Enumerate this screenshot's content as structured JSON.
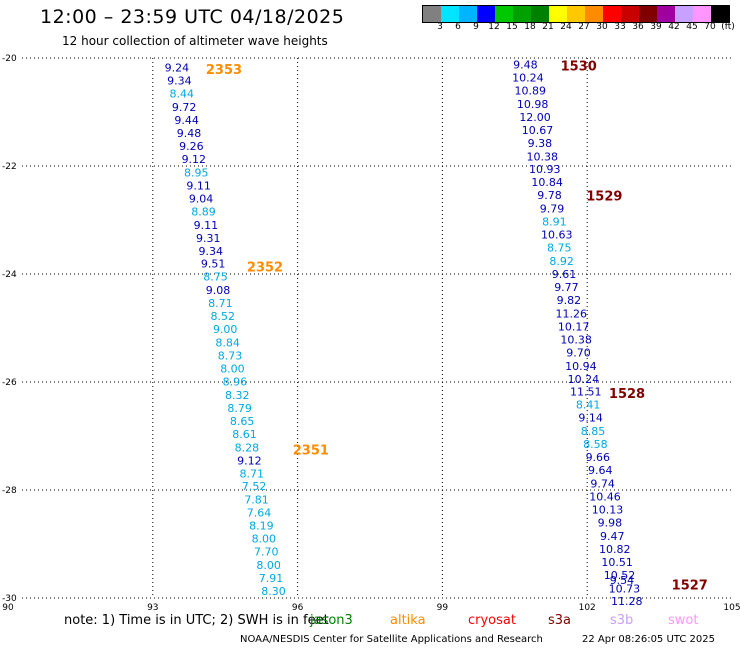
{
  "header": {
    "title": "12:00 – 23:59 UTC 04/18/2025",
    "subtitle": "12 hour collection of altimeter wave heights"
  },
  "legend": {
    "colors": [
      "#808080",
      "#00e5ff",
      "#00b4ff",
      "#0000ff",
      "#00c800",
      "#00a000",
      "#008000",
      "#ffff00",
      "#ffc800",
      "#ff8c00",
      "#ff0000",
      "#c80000",
      "#800000",
      "#a000a0",
      "#c8a0ff",
      "#ff96ff",
      "#000000"
    ],
    "labels": [
      "3",
      "6",
      "9",
      "12",
      "15",
      "18",
      "21",
      "24",
      "27",
      "30",
      "33",
      "36",
      "39",
      "42",
      "45",
      "70",
      "(ft)"
    ]
  },
  "footer": {
    "note": "note:  1) Time is in UTC; 2) SWH is in feet",
    "satellites": [
      {
        "name": "jason3",
        "color": "#008000"
      },
      {
        "name": "altika",
        "color": "#ff8c00"
      },
      {
        "name": "cryosat",
        "color": "#ff0000"
      },
      {
        "name": "s3a",
        "color": "#800000"
      },
      {
        "name": "s3b",
        "color": "#c8a0ff"
      },
      {
        "name": "swot",
        "color": "#ff96ff"
      }
    ],
    "credit": "NOAA/NESDIS Center for Satellite Applications and Research",
    "timestamp": "22 Apr 08:26:05 UTC 2025"
  },
  "chart_data": {
    "type": "scatter",
    "xlim": [
      90,
      105
    ],
    "ylim": [
      -30,
      -20
    ],
    "x_ticks": [
      "90",
      "93",
      "96",
      "99",
      "102",
      "105"
    ],
    "y_ticks": [
      "-20",
      "-22",
      "-24",
      "-26",
      "-28",
      "-30"
    ],
    "grid": "dotted",
    "colors": {
      "dark": "#0000b4",
      "light": "#00a8e0"
    },
    "tracks": [
      {
        "points": [
          {
            "x": 93.5,
            "y": -20.18,
            "v": "9.24",
            "c": "dark"
          },
          {
            "x": 93.55,
            "y": -20.42,
            "v": "9.34",
            "c": "dark"
          },
          {
            "x": 93.6,
            "y": -20.66,
            "v": "8.44",
            "c": "light"
          },
          {
            "x": 93.65,
            "y": -20.91,
            "v": "9.72",
            "c": "dark"
          },
          {
            "x": 93.7,
            "y": -21.15,
            "v": "9.44",
            "c": "dark"
          },
          {
            "x": 93.75,
            "y": -21.39,
            "v": "9.48",
            "c": "dark"
          },
          {
            "x": 93.8,
            "y": -21.63,
            "v": "9.26",
            "c": "dark"
          },
          {
            "x": 93.85,
            "y": -21.87,
            "v": "9.12",
            "c": "dark"
          },
          {
            "x": 93.9,
            "y": -22.12,
            "v": "8.95",
            "c": "light"
          },
          {
            "x": 93.95,
            "y": -22.36,
            "v": "9.11",
            "c": "dark"
          },
          {
            "x": 94.0,
            "y": -22.6,
            "v": "9.04",
            "c": "dark"
          },
          {
            "x": 94.05,
            "y": -22.84,
            "v": "8.89",
            "c": "light"
          },
          {
            "x": 94.1,
            "y": -23.09,
            "v": "9.11",
            "c": "dark"
          },
          {
            "x": 94.15,
            "y": -23.33,
            "v": "9.31",
            "c": "dark"
          },
          {
            "x": 94.2,
            "y": -23.57,
            "v": "9.34",
            "c": "dark"
          },
          {
            "x": 94.25,
            "y": -23.81,
            "v": "9.51",
            "c": "dark"
          },
          {
            "x": 94.3,
            "y": -24.05,
            "v": "8.75",
            "c": "light"
          },
          {
            "x": 94.35,
            "y": -24.3,
            "v": "9.08",
            "c": "dark"
          },
          {
            "x": 94.4,
            "y": -24.54,
            "v": "8.71",
            "c": "light"
          },
          {
            "x": 94.45,
            "y": -24.78,
            "v": "8.52",
            "c": "light"
          },
          {
            "x": 94.5,
            "y": -25.02,
            "v": "9.00",
            "c": "light"
          },
          {
            "x": 94.55,
            "y": -25.27,
            "v": "8.84",
            "c": "light"
          },
          {
            "x": 94.6,
            "y": -25.51,
            "v": "8.73",
            "c": "light"
          },
          {
            "x": 94.65,
            "y": -25.75,
            "v": "8.00",
            "c": "light"
          },
          {
            "x": 94.7,
            "y": -25.99,
            "v": "8.96",
            "c": "light"
          },
          {
            "x": 94.75,
            "y": -26.24,
            "v": "8.32",
            "c": "light"
          },
          {
            "x": 94.8,
            "y": -26.48,
            "v": "8.79",
            "c": "light"
          },
          {
            "x": 94.85,
            "y": -26.72,
            "v": "8.65",
            "c": "light"
          },
          {
            "x": 94.9,
            "y": -26.96,
            "v": "8.61",
            "c": "light"
          },
          {
            "x": 94.95,
            "y": -27.21,
            "v": "8.28",
            "c": "light"
          },
          {
            "x": 95.0,
            "y": -27.45,
            "v": "9.12",
            "c": "dark"
          },
          {
            "x": 95.05,
            "y": -27.69,
            "v": "8.71",
            "c": "light"
          },
          {
            "x": 95.1,
            "y": -27.93,
            "v": "7.52",
            "c": "light"
          },
          {
            "x": 95.15,
            "y": -28.18,
            "v": "7.81",
            "c": "light"
          },
          {
            "x": 95.2,
            "y": -28.42,
            "v": "7.64",
            "c": "light"
          },
          {
            "x": 95.25,
            "y": -28.66,
            "v": "8.19",
            "c": "light"
          },
          {
            "x": 95.3,
            "y": -28.9,
            "v": "8.00",
            "c": "light"
          },
          {
            "x": 95.35,
            "y": -29.14,
            "v": "7.70",
            "c": "light"
          },
          {
            "x": 95.4,
            "y": -29.39,
            "v": "8.00",
            "c": "light"
          },
          {
            "x": 95.45,
            "y": -29.63,
            "v": "7.91",
            "c": "light"
          },
          {
            "x": 95.5,
            "y": -29.87,
            "v": "8.30",
            "c": "light"
          }
        ],
        "labels": [
          {
            "text": "2353",
            "x": 94.1,
            "y": -20.2,
            "color": "#ff8c00"
          },
          {
            "text": "2352",
            "x": 94.95,
            "y": -23.86,
            "color": "#ff8c00"
          },
          {
            "text": "2351",
            "x": 95.9,
            "y": -27.25,
            "color": "#ff8c00"
          }
        ]
      },
      {
        "points": [
          {
            "x": 100.72,
            "y": -20.12,
            "v": "9.48",
            "c": "dark"
          },
          {
            "x": 100.77,
            "y": -20.36,
            "v": "10.24",
            "c": "dark"
          },
          {
            "x": 100.82,
            "y": -20.6,
            "v": "10.89",
            "c": "dark"
          },
          {
            "x": 100.87,
            "y": -20.85,
            "v": "10.98",
            "c": "dark"
          },
          {
            "x": 100.92,
            "y": -21.09,
            "v": "12.00",
            "c": "dark"
          },
          {
            "x": 100.97,
            "y": -21.33,
            "v": "10.67",
            "c": "dark"
          },
          {
            "x": 101.02,
            "y": -21.57,
            "v": "9.38",
            "c": "dark"
          },
          {
            "x": 101.07,
            "y": -21.82,
            "v": "10.38",
            "c": "dark"
          },
          {
            "x": 101.12,
            "y": -22.06,
            "v": "10.93",
            "c": "dark"
          },
          {
            "x": 101.17,
            "y": -22.3,
            "v": "10.84",
            "c": "dark"
          },
          {
            "x": 101.22,
            "y": -22.54,
            "v": "9.78",
            "c": "dark"
          },
          {
            "x": 101.27,
            "y": -22.79,
            "v": "9.79",
            "c": "dark"
          },
          {
            "x": 101.32,
            "y": -23.03,
            "v": "8.91",
            "c": "light"
          },
          {
            "x": 101.37,
            "y": -23.27,
            "v": "10.63",
            "c": "dark"
          },
          {
            "x": 101.42,
            "y": -23.51,
            "v": "8.75",
            "c": "light"
          },
          {
            "x": 101.47,
            "y": -23.76,
            "v": "8.92",
            "c": "light"
          },
          {
            "x": 101.52,
            "y": -24.0,
            "v": "9.61",
            "c": "dark"
          },
          {
            "x": 101.57,
            "y": -24.24,
            "v": "9.77",
            "c": "dark"
          },
          {
            "x": 101.62,
            "y": -24.48,
            "v": "9.82",
            "c": "dark"
          },
          {
            "x": 101.67,
            "y": -24.73,
            "v": "11.26",
            "c": "dark"
          },
          {
            "x": 101.72,
            "y": -24.97,
            "v": "10.17",
            "c": "dark"
          },
          {
            "x": 101.77,
            "y": -25.21,
            "v": "10.38",
            "c": "dark"
          },
          {
            "x": 101.82,
            "y": -25.45,
            "v": "9.70",
            "c": "dark"
          },
          {
            "x": 101.87,
            "y": -25.7,
            "v": "10.94",
            "c": "dark"
          },
          {
            "x": 101.92,
            "y": -25.94,
            "v": "10.24",
            "c": "dark"
          },
          {
            "x": 101.97,
            "y": -26.18,
            "v": "11.51",
            "c": "dark"
          },
          {
            "x": 102.02,
            "y": -26.42,
            "v": "8.41",
            "c": "light"
          },
          {
            "x": 102.07,
            "y": -26.66,
            "v": "9.14",
            "c": "dark"
          },
          {
            "x": 102.12,
            "y": -26.91,
            "v": "8.85",
            "c": "light"
          },
          {
            "x": 102.17,
            "y": -27.15,
            "v": "8.58",
            "c": "light"
          },
          {
            "x": 102.22,
            "y": -27.39,
            "v": "9.66",
            "c": "dark"
          },
          {
            "x": 102.27,
            "y": -27.63,
            "v": "9.64",
            "c": "dark"
          },
          {
            "x": 102.32,
            "y": -27.88,
            "v": "9.74",
            "c": "dark"
          },
          {
            "x": 102.37,
            "y": -28.12,
            "v": "10.46",
            "c": "dark"
          },
          {
            "x": 102.42,
            "y": -28.36,
            "v": "10.13",
            "c": "dark"
          },
          {
            "x": 102.47,
            "y": -28.6,
            "v": "9.98",
            "c": "dark"
          },
          {
            "x": 102.52,
            "y": -28.85,
            "v": "9.47",
            "c": "dark"
          },
          {
            "x": 102.57,
            "y": -29.09,
            "v": "10.82",
            "c": "dark"
          },
          {
            "x": 102.62,
            "y": -29.33,
            "v": "10.51",
            "c": "dark"
          },
          {
            "x": 102.67,
            "y": -29.57,
            "v": "10.52",
            "c": "dark"
          },
          {
            "x": 102.72,
            "y": -29.67,
            "v": "9.54",
            "c": "dark"
          },
          {
            "x": 102.77,
            "y": -29.82,
            "v": "10.73",
            "c": "dark"
          },
          {
            "x": 102.82,
            "y": -30.06,
            "v": "11.28",
            "c": "dark"
          }
        ],
        "labels": [
          {
            "text": "1530",
            "x": 101.45,
            "y": -20.14,
            "color": "#800000"
          },
          {
            "text": "1529",
            "x": 101.98,
            "y": -22.55,
            "color": "#800000"
          },
          {
            "text": "1528",
            "x": 102.45,
            "y": -26.2,
            "color": "#800000"
          },
          {
            "text": "1527",
            "x": 103.75,
            "y": -29.75,
            "color": "#800000"
          }
        ]
      }
    ]
  }
}
